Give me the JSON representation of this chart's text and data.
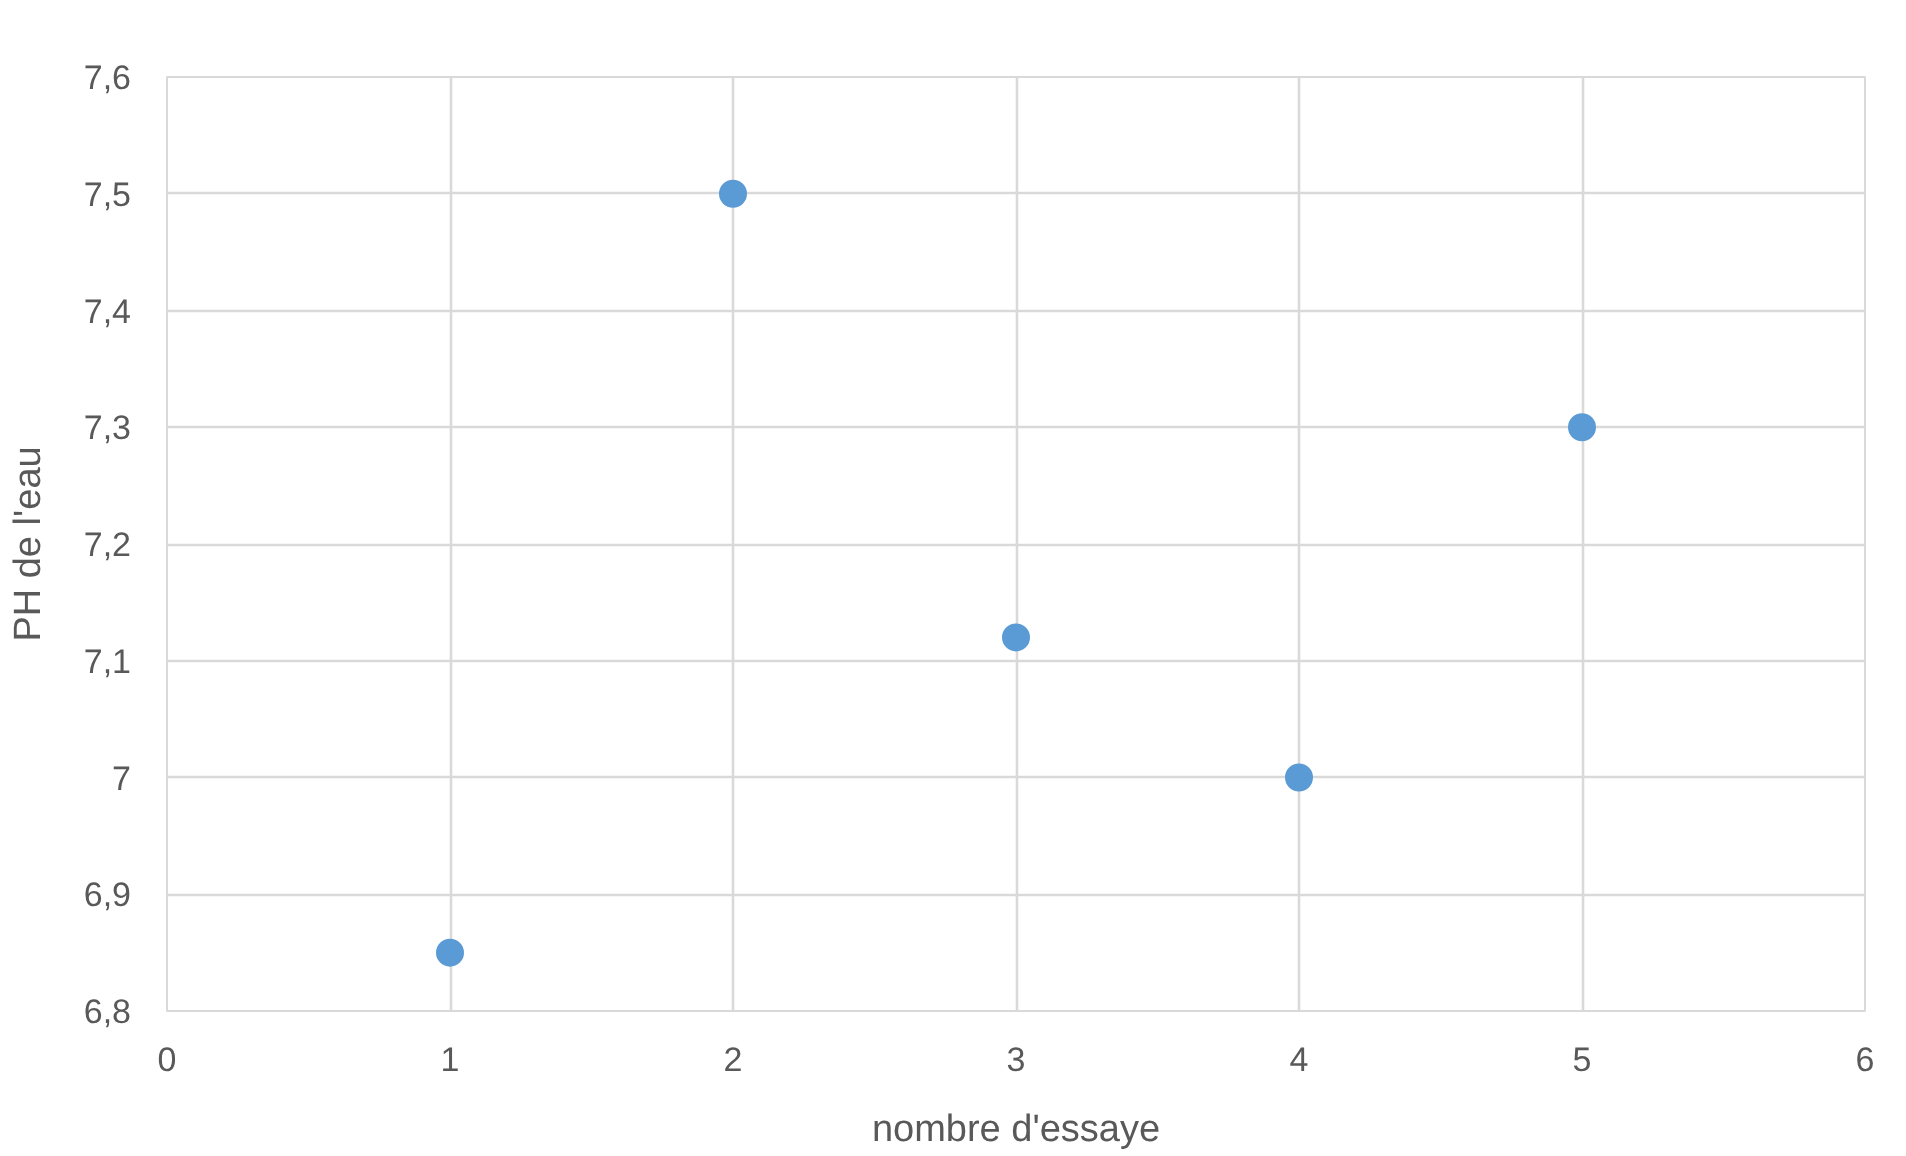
{
  "chart_data": {
    "type": "scatter",
    "xlabel": "nombre d'essaye",
    "ylabel": "PH de l'eau",
    "x": [
      1,
      2,
      3,
      4,
      5
    ],
    "series": [
      {
        "color": "#5b9bd5",
        "values": [
          6.85,
          7.5,
          7.12,
          7.0,
          7.3
        ]
      }
    ],
    "xlim": [
      0,
      6
    ],
    "xticks": [
      0,
      1,
      2,
      3,
      4,
      5,
      6
    ],
    "ylim": [
      6.8,
      7.6
    ],
    "yticks": [
      {
        "value": 6.8,
        "label": "6,8"
      },
      {
        "value": 6.9,
        "label": "6,9"
      },
      7,
      {
        "value": 7.1,
        "label": "7,1"
      },
      {
        "value": 7.2,
        "label": "7,2"
      },
      {
        "value": 7.3,
        "label": "7,3"
      },
      {
        "value": 7.4,
        "label": "7,4"
      },
      {
        "value": 7.5,
        "label": "7,5"
      },
      {
        "value": 7.6,
        "label": "7,6"
      }
    ],
    "grid": true,
    "marker": "circle"
  }
}
